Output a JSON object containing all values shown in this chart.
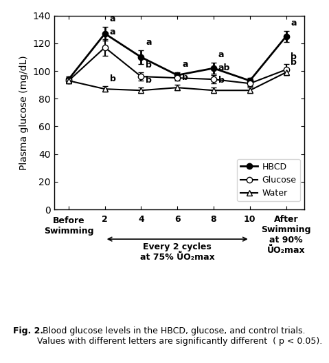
{
  "x_positions": [
    0,
    1,
    2,
    3,
    4,
    5,
    6
  ],
  "hbcd_y": [
    94,
    127,
    110,
    97,
    102,
    93,
    125
  ],
  "glucose_y": [
    93,
    117,
    96,
    95,
    94,
    91,
    101
  ],
  "water_y": [
    93,
    87,
    86,
    88,
    86,
    86,
    99
  ],
  "hbcd_err": [
    2,
    5,
    5,
    2,
    4,
    2,
    4
  ],
  "glucose_err": [
    2,
    6,
    3,
    2,
    3,
    2,
    4
  ],
  "water_err": [
    2,
    2,
    2,
    2,
    2,
    2,
    2
  ],
  "hbcd_letters": [
    "",
    "a",
    "a",
    "a",
    "a",
    "",
    "a"
  ],
  "glucose_letters": [
    "",
    "a",
    "b",
    "",
    "ab",
    "",
    "b"
  ],
  "water_letters": [
    "",
    "b",
    "b",
    "b",
    "b",
    "",
    "b"
  ],
  "ylabel": "Plasma glucose (mg/dL)",
  "ylim": [
    0,
    140
  ],
  "yticks": [
    0,
    20,
    40,
    60,
    80,
    100,
    120,
    140
  ],
  "legend_labels": [
    "HBCD",
    "Glucose",
    "Water"
  ],
  "fig_caption_bold": "Fig. 2.",
  "fig_caption_normal": "  Blood glucose levels in the HBCD, glucose, and control trials.\nValues with different letters are significantly different  ( p < 0.05).",
  "arrow_text_line1": "Every 2 cycles",
  "arrow_text_line2": "at 75% ṺO₂max",
  "after_label": "After\nSwimming\nat 90%\nṺO₂max",
  "before_label": "Before\nSwimming",
  "mid_labels": [
    "2",
    "4",
    "6",
    "8",
    "10"
  ]
}
